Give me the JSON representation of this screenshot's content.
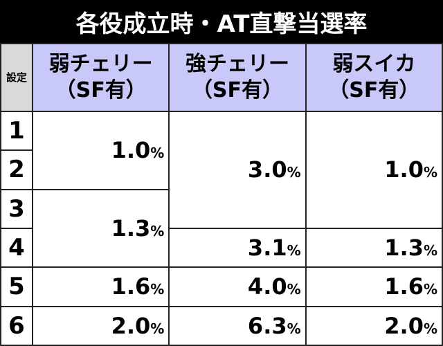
{
  "title": "各役成立時・AT直撃当選率",
  "table": {
    "corner": "設定",
    "settings": [
      1,
      2,
      3,
      4,
      5,
      6
    ],
    "columns": [
      {
        "name": "弱チェリー",
        "note": "（SF有）",
        "cells": [
          "1.0%",
          "1.3%",
          "1.6%",
          "2.0%"
        ]
      },
      {
        "name": "強チェリー",
        "note": "（SF有）",
        "cells": [
          "3.0%",
          "3.1%",
          "4.0%",
          "6.3%"
        ]
      },
      {
        "name": "弱スイカ",
        "note": "（SF有）",
        "cells": [
          "1.0%",
          "1.3%",
          "1.6%",
          "2.0%"
        ]
      }
    ]
  }
}
